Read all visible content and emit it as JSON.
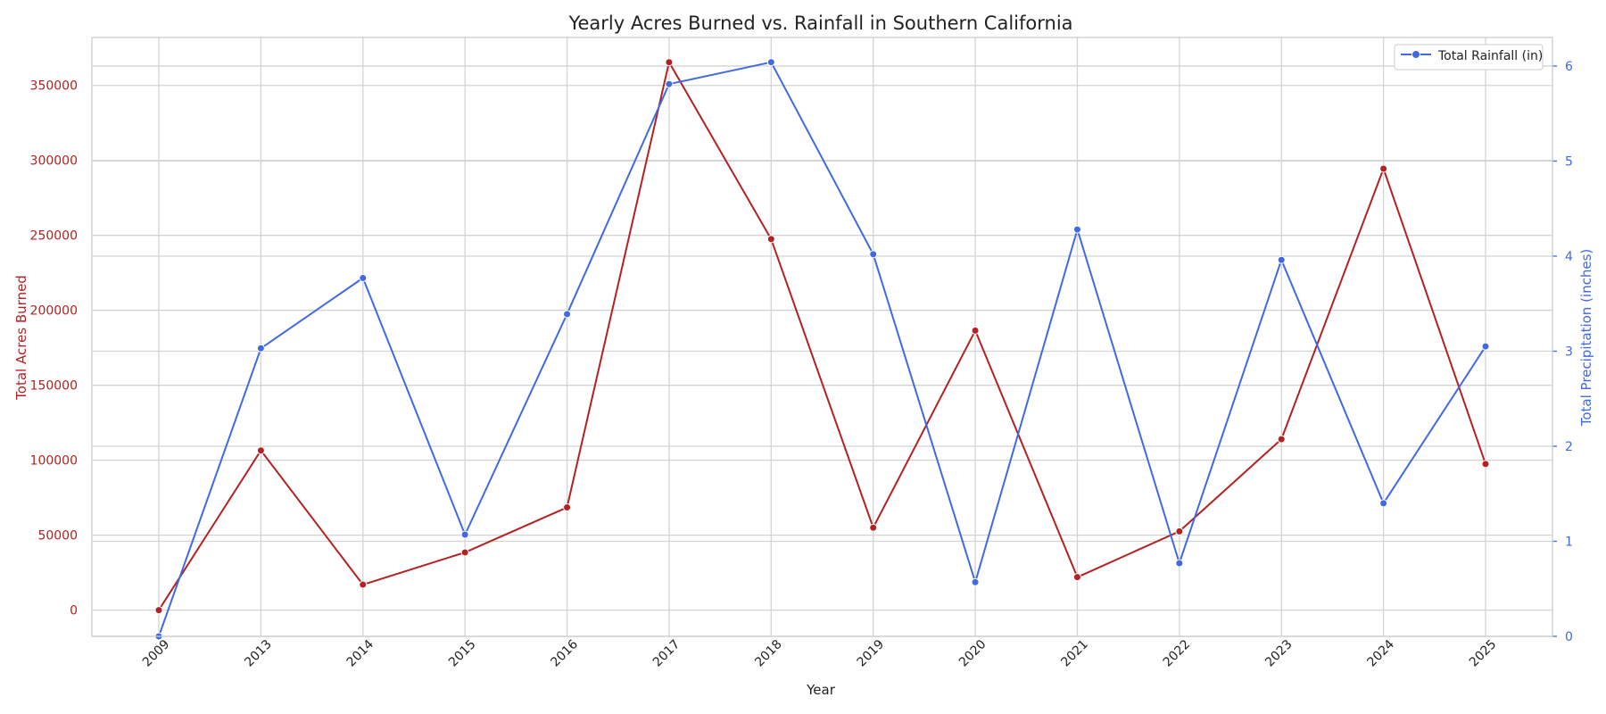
{
  "chart_data": {
    "type": "line",
    "title": "Yearly Acres Burned vs. Rainfall in Southern California",
    "xlabel": "Year",
    "ylabel_left": "Total Acres Burned",
    "ylabel_right": "Total Precipitation (inches)",
    "categories": [
      "2009",
      "2013",
      "2014",
      "2015",
      "2016",
      "2017",
      "2018",
      "2019",
      "2020",
      "2021",
      "2022",
      "2023",
      "2024",
      "2025"
    ],
    "y_left": {
      "ticks": [
        0,
        50000,
        100000,
        150000,
        200000,
        250000,
        300000,
        350000
      ],
      "range": [
        -17500,
        382000
      ]
    },
    "y_right": {
      "ticks": [
        0,
        1,
        2,
        3,
        4,
        5,
        6
      ],
      "range": [
        0,
        6.3
      ]
    },
    "grid": true,
    "legend_position": "top-right",
    "colors": {
      "acres": "#b22222",
      "rainfall": "#4169e1",
      "text": "#222222"
    },
    "series": [
      {
        "key": "acres",
        "axis": "left",
        "values": [
          0,
          106500,
          17000,
          38500,
          68500,
          365500,
          247500,
          55000,
          186500,
          22000,
          52500,
          114000,
          294500,
          97500
        ]
      },
      {
        "key": "rainfall",
        "axis": "right",
        "name": "Total Rainfall (in)",
        "values": [
          0.0,
          3.03,
          3.77,
          1.07,
          3.39,
          5.81,
          6.04,
          4.02,
          0.57,
          4.28,
          0.77,
          3.96,
          1.4,
          3.05
        ]
      }
    ]
  }
}
